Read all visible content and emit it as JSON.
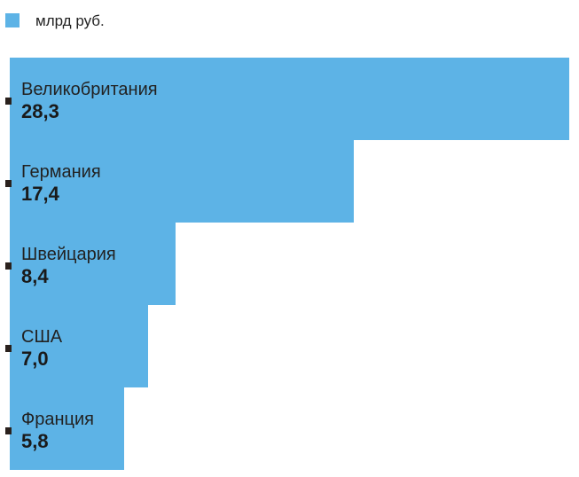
{
  "chart_data": {
    "type": "bar",
    "orientation": "horizontal",
    "legend": {
      "label": "млрд руб.",
      "placement": "top-left"
    },
    "categories": [
      "Великобритания",
      "Германия",
      "Швейцария",
      "США",
      "Франция"
    ],
    "values": [
      28.3,
      17.4,
      8.4,
      7.0,
      5.8
    ],
    "value_labels": [
      "28,3",
      "17,4",
      "8,4",
      "7,0",
      "5,8"
    ],
    "xlim": [
      0,
      28.3
    ],
    "grid": false,
    "colors": {
      "bar": "#5db3e6",
      "marker": "#2a211d"
    }
  }
}
